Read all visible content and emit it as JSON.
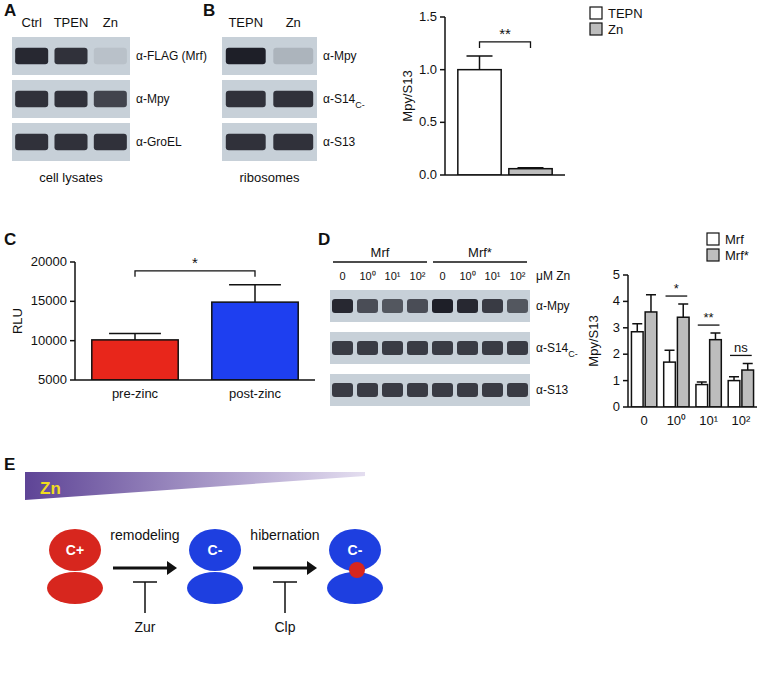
{
  "panel_labels": [
    "A",
    "B",
    "C",
    "D",
    "E"
  ],
  "blots": [
    {
      "lanes": [
        "Ctrl",
        "TPEN",
        "Zn"
      ],
      "rows": [
        {
          "label": "α-FLAG (Mrf)",
          "intensity": [
            0.9,
            0.85,
            0.08
          ]
        },
        {
          "label": "α-Mpy",
          "intensity": [
            0.85,
            0.85,
            0.75
          ]
        },
        {
          "label": "α-GroEL",
          "intensity": [
            0.85,
            0.85,
            0.85
          ]
        }
      ],
      "caption": "cell lysates"
    },
    {
      "lanes": [
        "TEPN",
        "Zn"
      ],
      "rows": [
        {
          "label": "α-Mpy",
          "intensity": [
            0.95,
            0.15
          ]
        },
        {
          "label": "α-S14",
          "subscript": "C-",
          "intensity": [
            0.85,
            0.85
          ]
        },
        {
          "label": "α-S13",
          "intensity": [
            0.85,
            0.85
          ]
        }
      ],
      "caption": "ribosomes"
    },
    {
      "lanes": [
        "0",
        "10⁰",
        "10¹",
        "10²",
        "0",
        "10⁰",
        "10¹",
        "10²"
      ],
      "groups": [
        {
          "label": "Mrf",
          "first": 0,
          "last": 3
        },
        {
          "label": "Mrf*",
          "first": 4,
          "last": 7
        }
      ],
      "unit": "μM Zn",
      "rows": [
        {
          "label": "α-Mpy",
          "intensity": [
            0.9,
            0.7,
            0.65,
            0.7,
            0.95,
            0.9,
            0.8,
            0.65
          ]
        },
        {
          "label": "α-S14",
          "subscript": "C-",
          "intensity": [
            0.8,
            0.8,
            0.8,
            0.8,
            0.8,
            0.8,
            0.8,
            0.8
          ]
        },
        {
          "label": "α-S13",
          "intensity": [
            0.8,
            0.8,
            0.8,
            0.8,
            0.8,
            0.8,
            0.8,
            0.8
          ]
        }
      ]
    }
  ],
  "chart_data": [
    {
      "type": "bar",
      "y_label": "Mpy/S13",
      "categories": [
        null
      ],
      "ylim": [
        0,
        1.5
      ],
      "yticks": [
        {
          "value": 0,
          "label": "0.0"
        },
        {
          "value": 0.5,
          "label": "0.5"
        },
        {
          "value": 1,
          "label": "1.0"
        },
        {
          "value": 1.5,
          "label": "1.5"
        }
      ],
      "series": [
        {
          "name": "TEPN",
          "color": "#ffffff",
          "values": [
            1.0
          ],
          "errors": [
            0.13
          ]
        },
        {
          "name": "Zn",
          "color": "#bdbdbd",
          "values": [
            0.06
          ],
          "errors": [
            0.01
          ]
        }
      ],
      "legend": "right",
      "significance": "**"
    },
    {
      "type": "bar",
      "y_label": "RLU",
      "categories": [
        "pre-zinc",
        "post-zinc"
      ],
      "values": [
        10100,
        14900
      ],
      "errors": [
        800,
        2200
      ],
      "colors": [
        "#e8261b",
        "#1e3ff0"
      ],
      "ylim": [
        5000,
        20000
      ],
      "yticks": [
        5000,
        10000,
        15000,
        20000
      ],
      "significance": "*"
    },
    {
      "type": "bar",
      "y_label": "Mpy/S13",
      "categories": [
        "0",
        "10⁰",
        "10¹",
        "10²"
      ],
      "ylim": [
        0,
        5
      ],
      "yticks": [
        0,
        1,
        2,
        3,
        4,
        5
      ],
      "series": [
        {
          "name": "Mrf",
          "color": "#ffffff",
          "values": [
            2.85,
            1.7,
            0.85,
            1.0
          ],
          "errors": [
            0.3,
            0.45,
            0.1,
            0.15
          ]
        },
        {
          "name": "Mrf*",
          "color": "#bdbdbd",
          "values": [
            3.6,
            3.4,
            2.55,
            1.4
          ],
          "errors": [
            0.65,
            0.5,
            0.25,
            0.25
          ]
        }
      ],
      "legend": "top right",
      "annotations": [
        {
          "category": 1,
          "text": "*"
        },
        {
          "category": 2,
          "text": "**"
        },
        {
          "category": 3,
          "text": "ns"
        }
      ]
    }
  ],
  "diagram": {
    "gradient_label": "Zn",
    "states": [
      {
        "label": "C+",
        "color": "#d7261e"
      },
      {
        "label": "C-",
        "color": "#1e3fe0"
      },
      {
        "label": "C-",
        "color": "#1e3fe0",
        "bound": true
      }
    ],
    "steps": [
      {
        "label": "remodeling",
        "inhibitor": "Zur"
      },
      {
        "label": "hibernation",
        "inhibitor": "Clp"
      }
    ]
  }
}
